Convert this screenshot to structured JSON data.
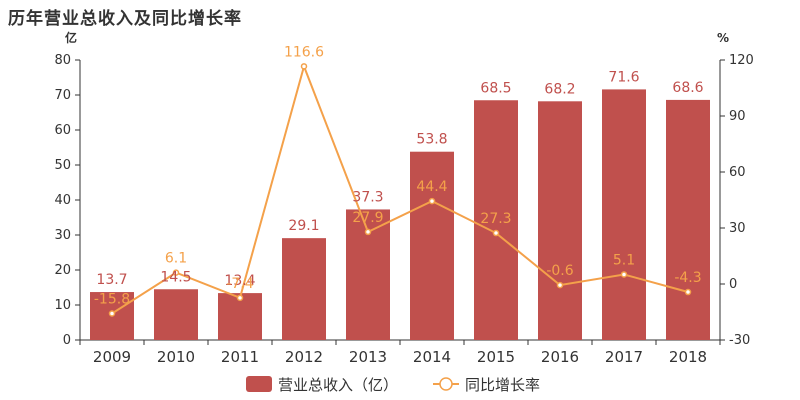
{
  "title": "历年营业总收入及同比增长率",
  "colors": {
    "bar": "#c0504d",
    "line": "#f4a14a",
    "axis": "#333333"
  },
  "chart_data": {
    "type": "bar",
    "title": "历年营业总收入及同比增长率",
    "categories": [
      "2009",
      "2010",
      "2011",
      "2012",
      "2013",
      "2014",
      "2015",
      "2016",
      "2017",
      "2018"
    ],
    "series": [
      {
        "name": "营业总收入（亿）",
        "type": "bar",
        "axis": "left",
        "values": [
          13.7,
          14.5,
          13.4,
          29.1,
          37.3,
          53.8,
          68.5,
          68.2,
          71.6,
          68.6
        ]
      },
      {
        "name": "同比增长率",
        "type": "line",
        "axis": "right",
        "values": [
          -15.8,
          6.1,
          -7.4,
          116.6,
          27.9,
          44.4,
          27.3,
          -0.6,
          5.1,
          -4.3
        ]
      }
    ],
    "ylabel_left": "亿",
    "ylabel_right": "%",
    "ylim_left": [
      0,
      80
    ],
    "yticks_left": [
      0,
      10,
      20,
      30,
      40,
      50,
      60,
      70,
      80
    ],
    "ylim_right": [
      -30,
      120
    ],
    "yticks_right": [
      -30,
      0,
      30,
      60,
      90,
      120
    ],
    "grid": false,
    "legend": "bottom"
  }
}
